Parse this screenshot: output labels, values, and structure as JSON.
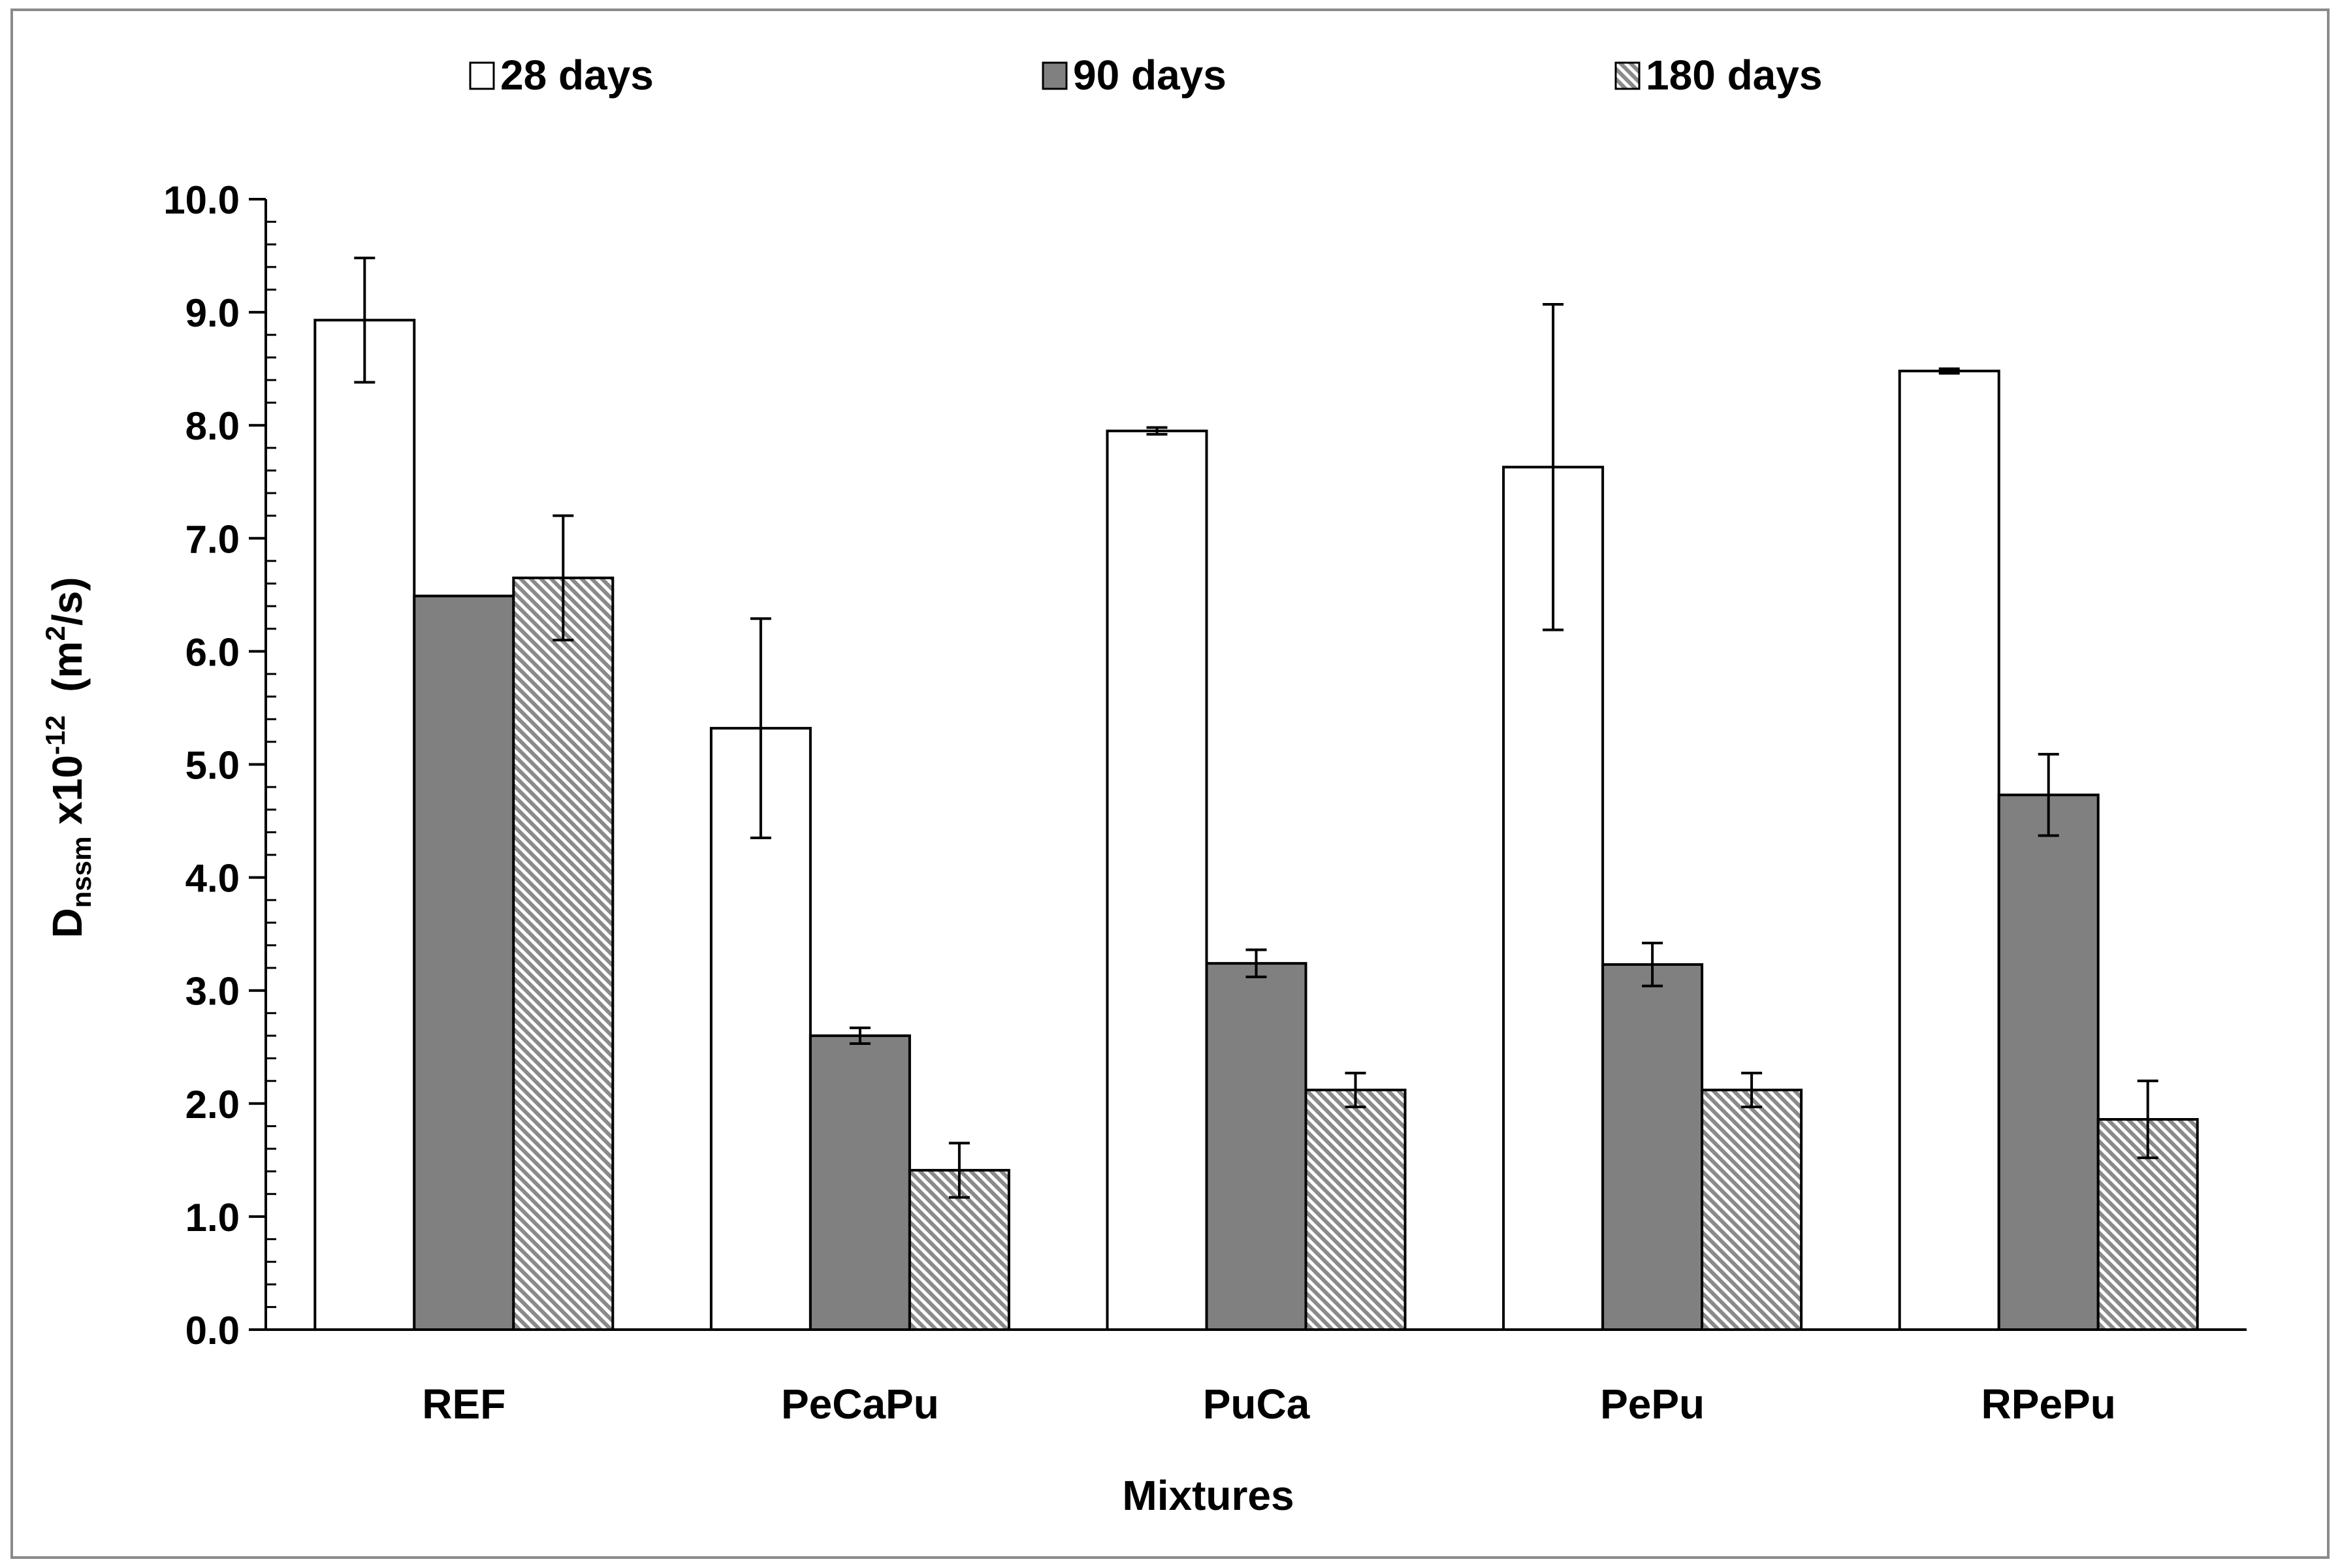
{
  "chart_data": {
    "type": "bar",
    "title": "",
    "xlabel": "Mixtures",
    "ylabel": {
      "main": "D",
      "subscript": "nssm",
      "middle": " x10",
      "superscript": "-12",
      "units_open": "  (m",
      "units_sup": "2",
      "units_close": "/s)"
    },
    "ylim": [
      0,
      10
    ],
    "yticks": [
      "0.0",
      "1.0",
      "2.0",
      "3.0",
      "4.0",
      "5.0",
      "6.0",
      "7.0",
      "8.0",
      "9.0",
      "10.0"
    ],
    "categories": [
      "REF",
      "PeCaPu",
      "PuCa",
      "PePu",
      "RPePu"
    ],
    "legend_position": "top",
    "series": [
      {
        "name": "28 days",
        "fill": "#ffffff",
        "pattern": "none",
        "values": [
          8.93,
          5.32,
          7.95,
          7.63,
          8.48
        ],
        "errors": [
          0.55,
          0.97,
          0.03,
          1.44,
          0.02
        ]
      },
      {
        "name": "90 days",
        "fill": "#808080",
        "pattern": "none",
        "values": [
          6.49,
          2.6,
          3.24,
          3.23,
          4.73
        ],
        "errors": [
          null,
          0.07,
          0.12,
          0.19,
          0.36
        ]
      },
      {
        "name": "180 days",
        "fill": "#b0b0b0",
        "pattern": "diagonal-hatch",
        "values": [
          6.65,
          1.41,
          2.12,
          2.12,
          1.86
        ],
        "errors": [
          0.55,
          0.24,
          0.15,
          0.15,
          0.34
        ]
      }
    ]
  }
}
